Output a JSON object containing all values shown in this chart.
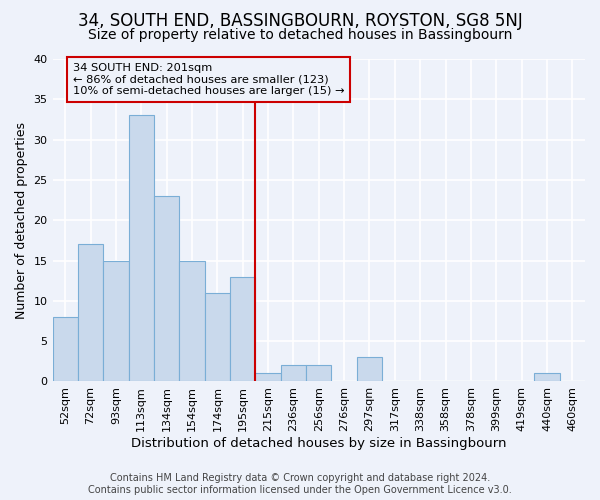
{
  "title": "34, SOUTH END, BASSINGBOURN, ROYSTON, SG8 5NJ",
  "subtitle": "Size of property relative to detached houses in Bassingbourn",
  "xlabel": "Distribution of detached houses by size in Bassingbourn",
  "ylabel": "Number of detached properties",
  "footer_line1": "Contains HM Land Registry data © Crown copyright and database right 2024.",
  "footer_line2": "Contains public sector information licensed under the Open Government Licence v3.0.",
  "categories": [
    "52sqm",
    "72sqm",
    "93sqm",
    "113sqm",
    "134sqm",
    "154sqm",
    "174sqm",
    "195sqm",
    "215sqm",
    "236sqm",
    "256sqm",
    "276sqm",
    "297sqm",
    "317sqm",
    "338sqm",
    "358sqm",
    "378sqm",
    "399sqm",
    "419sqm",
    "440sqm",
    "460sqm"
  ],
  "values": [
    8,
    17,
    15,
    33,
    23,
    15,
    11,
    13,
    1,
    2,
    2,
    0,
    3,
    0,
    0,
    0,
    0,
    0,
    0,
    1,
    0
  ],
  "bar_color": "#c9d9ec",
  "bar_edge_color": "#7aaed6",
  "background_color": "#eef2fa",
  "grid_color": "#ffffff",
  "ylim": [
    0,
    40
  ],
  "yticks": [
    0,
    5,
    10,
    15,
    20,
    25,
    30,
    35,
    40
  ],
  "vline_x_index": 7.5,
  "vline_color": "#cc0000",
  "annotation_line1": "34 SOUTH END: 201sqm",
  "annotation_line2": "← 86% of detached houses are smaller (123)",
  "annotation_line3": "10% of semi-detached houses are larger (15) →",
  "annotation_box_color": "#cc0000",
  "title_fontsize": 12,
  "subtitle_fontsize": 10,
  "xlabel_fontsize": 9.5,
  "ylabel_fontsize": 9,
  "tick_fontsize": 8,
  "footer_fontsize": 7
}
